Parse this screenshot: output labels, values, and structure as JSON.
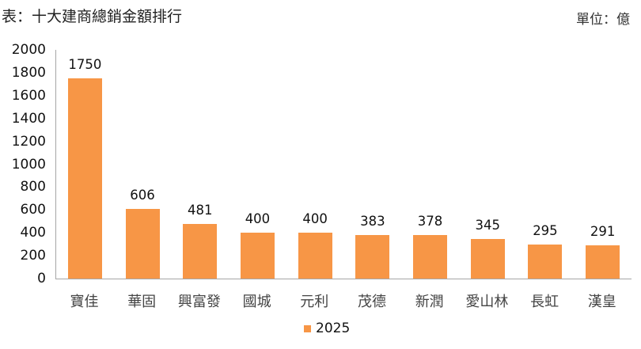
{
  "header": {
    "title": "表：十大建商總銷金額排行",
    "unit": "單位：億"
  },
  "colors": {
    "bar": "#f79646",
    "axis": "#a6a6a6"
  },
  "legend": {
    "label": "2025"
  },
  "chart_data": {
    "type": "bar",
    "title": "表：十大建商總銷金額排行",
    "subtitle": "單位：億",
    "xlabel": "",
    "ylabel": "",
    "categories": [
      "寶佳",
      "華固",
      "興富發",
      "國城",
      "元利",
      "茂德",
      "新潤",
      "愛山林",
      "長虹",
      "漢皇"
    ],
    "series": [
      {
        "name": "2025",
        "values": [
          1750,
          606,
          481,
          400,
          400,
          383,
          378,
          345,
          295,
          291
        ]
      }
    ],
    "ylim": [
      0,
      2000
    ],
    "yticks": [
      0,
      200,
      400,
      600,
      800,
      1000,
      1200,
      1400,
      1600,
      1800,
      2000
    ],
    "grid": false,
    "data_labels": true,
    "legend_position": "bottom"
  }
}
